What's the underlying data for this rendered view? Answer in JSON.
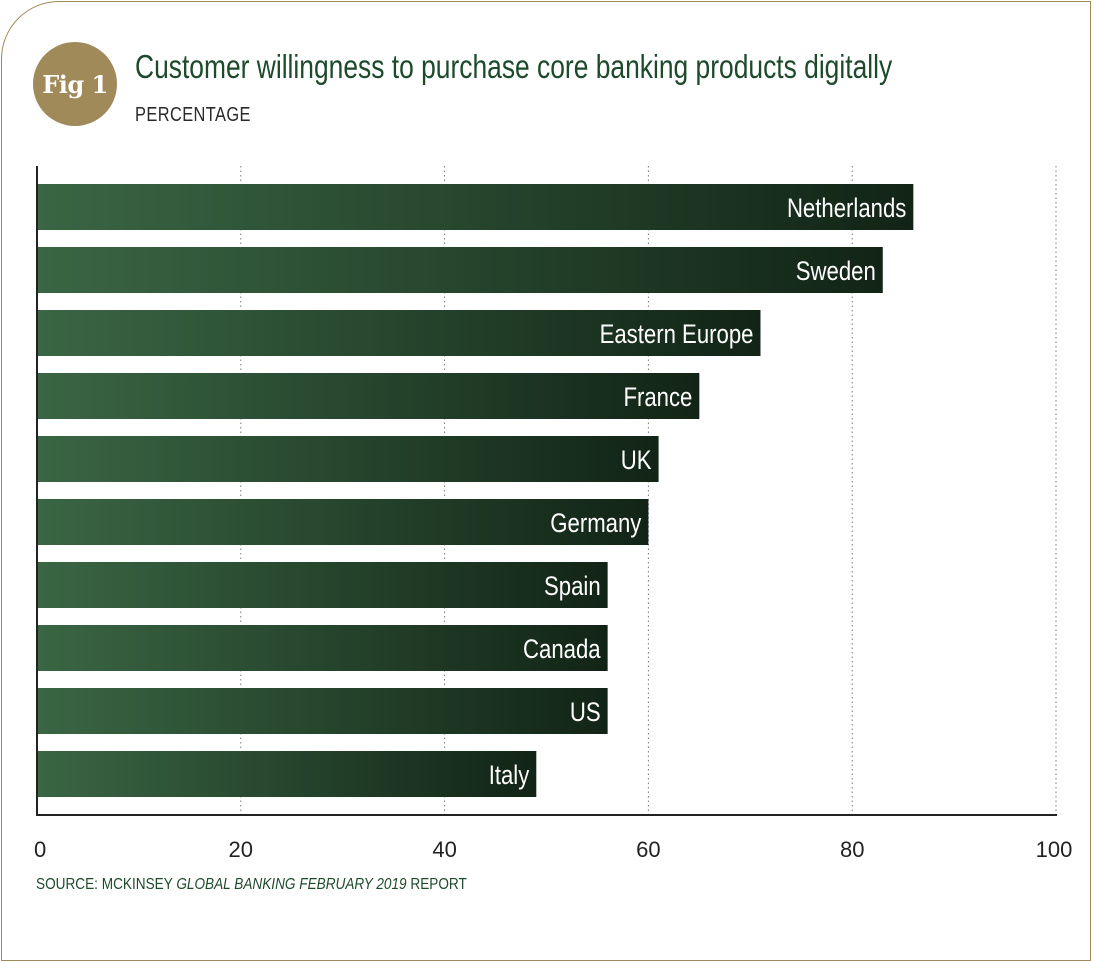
{
  "badge": {
    "label": "Fig 1"
  },
  "chart_data": {
    "type": "bar",
    "orientation": "horizontal",
    "title": "Customer willingness to purchase core banking products digitally",
    "subtitle": "PERCENTAGE",
    "categories": [
      "Netherlands",
      "Sweden",
      "Eastern Europe",
      "France",
      "UK",
      "Germany",
      "Spain",
      "Canada",
      "US",
      "Italy"
    ],
    "values": [
      86,
      83,
      71,
      65,
      61,
      60,
      56,
      56,
      56,
      49
    ],
    "xlim": [
      0,
      100
    ],
    "xticks": [
      "0",
      "20",
      "40",
      "60",
      "80",
      "100"
    ],
    "grid": "vertical-dotted",
    "bar_color_start": "#3a6644",
    "bar_color_end": "#122416"
  },
  "source": {
    "prefix": "SOURCE: MCKINSEY ",
    "italic": "GLOBAL BANKING FEBRUARY 2019",
    "suffix": " REPORT"
  },
  "colors": {
    "accent_gold": "#a08a5a",
    "title_green": "#1e4a2c"
  }
}
